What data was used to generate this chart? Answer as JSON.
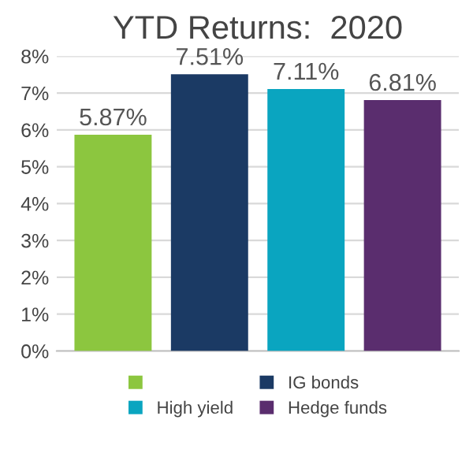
{
  "chart_data": {
    "type": "bar",
    "title": "YTD Returns:  2020",
    "categories": [
      null
    ],
    "series": [
      {
        "color": "#8cc63f",
        "values": [
          5.87
        ],
        "value_labels": [
          "5.87%"
        ]
      },
      {
        "name": "IG bonds",
        "color": "#1b3a64",
        "values": [
          7.51
        ],
        "value_labels": [
          "7.51%"
        ]
      },
      {
        "name": "High yield",
        "color": "#0aa5c0",
        "values": [
          7.11
        ],
        "value_labels": [
          "7.11%"
        ]
      },
      {
        "name": "Hedge funds",
        "color": "#5a2d6e",
        "values": [
          6.81
        ],
        "value_labels": [
          "6.81%"
        ]
      }
    ],
    "ylim": [
      0,
      8
    ],
    "yticks": [
      {
        "value": 0,
        "label": "0%"
      },
      {
        "value": 1,
        "label": "1%"
      },
      {
        "value": 2,
        "label": "2%"
      },
      {
        "value": 3,
        "label": "3%"
      },
      {
        "value": 4,
        "label": "4%"
      },
      {
        "value": 5,
        "label": "5%"
      },
      {
        "value": 6,
        "label": "6%"
      },
      {
        "value": 7,
        "label": "7%"
      },
      {
        "value": 8,
        "label": "8%"
      }
    ],
    "grid": "y",
    "legend": "bottom"
  }
}
